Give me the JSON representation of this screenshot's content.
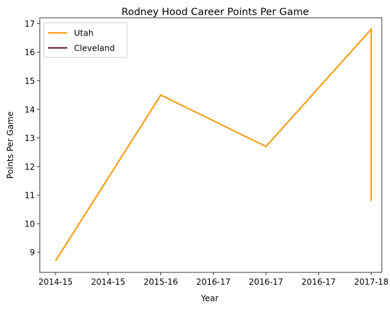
{
  "chart_data": {
    "type": "line",
    "title": "Rodney Hood Career Points Per Game",
    "xlabel": "Year",
    "ylabel": "Points Per Game",
    "x_positions": [
      0,
      1,
      2,
      3,
      4,
      5,
      6
    ],
    "xtick_labels": [
      "2014-15",
      "2014-15",
      "2015-16",
      "2016-17",
      "2016-17",
      "2016-17",
      "2017-18"
    ],
    "yticks": [
      9,
      10,
      11,
      12,
      13,
      14,
      15,
      16,
      17
    ],
    "xlim": [
      -0.3,
      6.2
    ],
    "ylim": [
      8.3,
      17.2
    ],
    "grid": false,
    "legend": "top-left",
    "series": [
      {
        "name": "Utah",
        "color": "#F4A11D",
        "points": [
          [
            0,
            8.7
          ],
          [
            2,
            14.5
          ],
          [
            4,
            12.7
          ],
          [
            6,
            16.8
          ],
          [
            6,
            10.8
          ]
        ]
      },
      {
        "name": "Cleveland",
        "color": "#6F263D",
        "points": []
      }
    ]
  }
}
